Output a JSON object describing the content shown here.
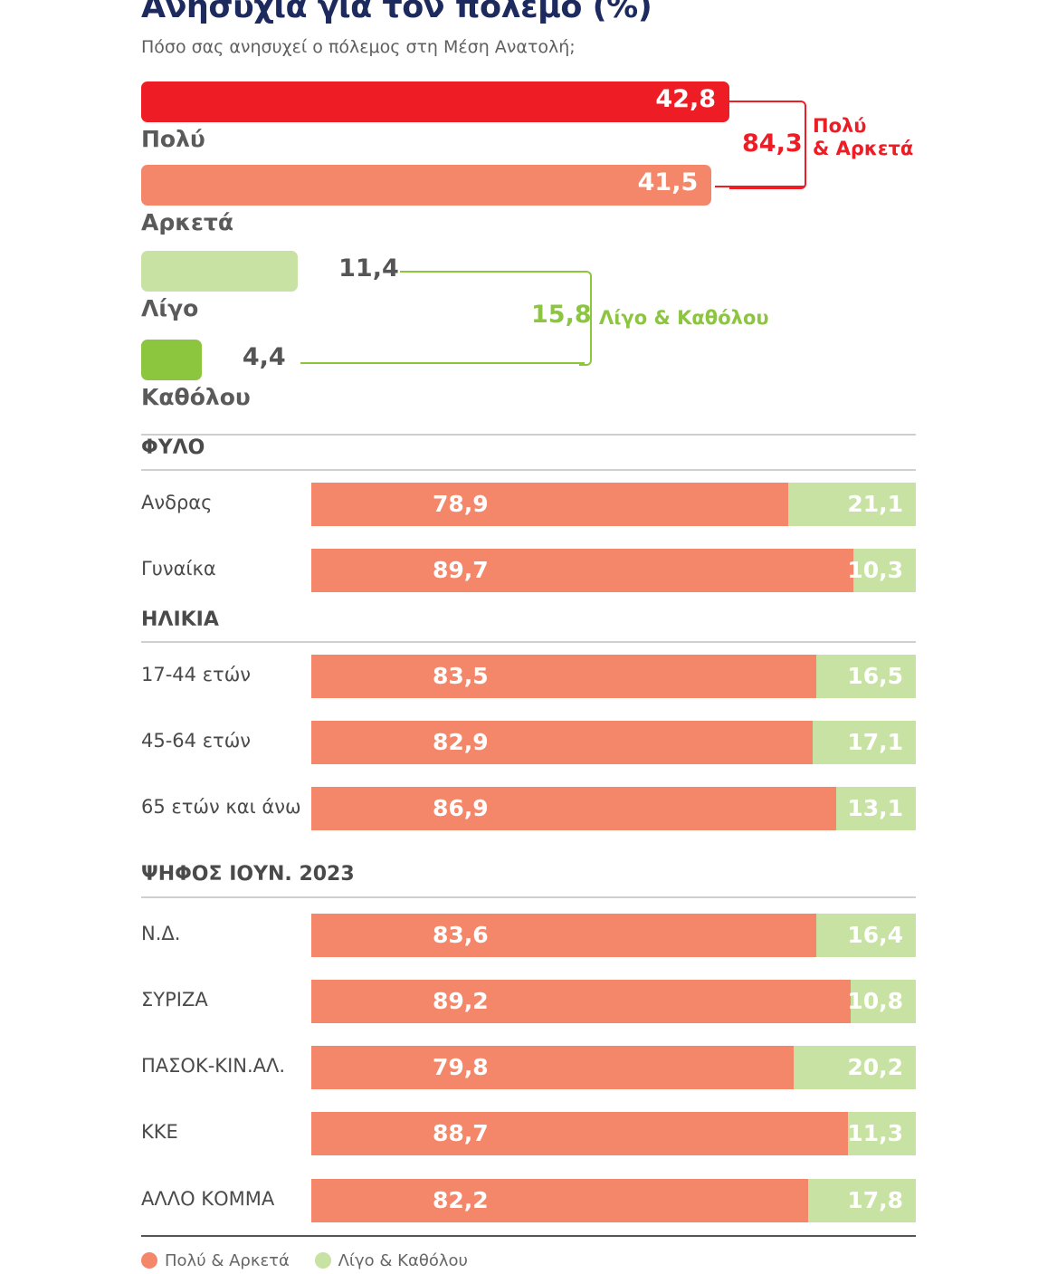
{
  "title": "Ανησυχία για τον πόλεμο (%)",
  "subtitle": "Πόσο σας ανησυχεί ο πόλεμος στη Μέση Ανατολή;",
  "colors": {
    "polu": "#ee1c25",
    "arketa": "#f4876a",
    "ligo": "#c8e2a3",
    "katholou": "#8cc63f",
    "group_red": "#ee1c25",
    "group_green": "#8cc63f"
  },
  "chart_data": [
    {
      "type": "bar",
      "orientation": "horizontal",
      "title": "Ανησυχία για τον πόλεμο (%)",
      "subtitle": "Πόσο σας ανησυχεί ο πόλεμος στη Μέση Ανατολή;",
      "categories": [
        "Πολύ",
        "Αρκετά",
        "Λίγο",
        "Καθόλου"
      ],
      "values": [
        42.8,
        41.5,
        11.4,
        4.4
      ],
      "value_labels": [
        "42,8",
        "41,5",
        "11,4",
        "4,4"
      ],
      "groups": [
        {
          "name": "Πολύ & Αρκετά",
          "members": [
            "Πολύ",
            "Αρκετά"
          ],
          "value": 84.3,
          "value_label": "84,3"
        },
        {
          "name": "Λίγο & Καθόλου",
          "members": [
            "Λίγο",
            "Καθόλου"
          ],
          "value": 15.8,
          "value_label": "15,8"
        }
      ],
      "grid": false
    },
    {
      "type": "bar",
      "orientation": "horizontal",
      "stacked": true,
      "sections": [
        {
          "title": "ΦΥΛΟ",
          "categories": [
            "Ανδρας",
            "Γυναίκα"
          ],
          "series": [
            {
              "name": "Πολύ & Αρκετά",
              "values": [
                78.9,
                89.7
              ],
              "labels": [
                "78,9",
                "89,7"
              ]
            },
            {
              "name": "Λίγο & Καθόλου",
              "values": [
                21.1,
                10.3
              ],
              "labels": [
                "21,1",
                "10,3"
              ]
            }
          ]
        },
        {
          "title": "ΗΛΙΚΙΑ",
          "categories": [
            "17-44 ετών",
            "45-64 ετών",
            "65 ετών και άνω"
          ],
          "series": [
            {
              "name": "Πολύ & Αρκετά",
              "values": [
                83.5,
                82.9,
                86.9
              ],
              "labels": [
                "83,5",
                "82,9",
                "86,9"
              ]
            },
            {
              "name": "Λίγο & Καθόλου",
              "values": [
                16.5,
                17.1,
                13.1
              ],
              "labels": [
                "16,5",
                "17,1",
                "13,1"
              ]
            }
          ]
        },
        {
          "title": "ΨΗΦΟΣ ΙΟΥΝ. 2023",
          "categories": [
            "Ν.Δ.",
            "ΣΥΡΙΖΑ",
            "ΠΑΣΟΚ-ΚΙΝ.ΑΛ.",
            "ΚΚΕ",
            "ΑΛΛΟ ΚΟΜΜΑ"
          ],
          "series": [
            {
              "name": "Πολύ & Αρκετά",
              "values": [
                83.6,
                89.2,
                79.8,
                88.7,
                82.2
              ],
              "labels": [
                "83,6",
                "89,2",
                "79,8",
                "88,7",
                "82,2"
              ]
            },
            {
              "name": "Λίγο & Καθόλου",
              "values": [
                16.4,
                10.8,
                20.2,
                11.3,
                17.8
              ],
              "labels": [
                "16,4",
                "10,8",
                "20,2",
                "11,3",
                "17,8"
              ]
            }
          ]
        }
      ],
      "xlim": [
        0,
        100
      ],
      "legend": {
        "position": "bottom-left",
        "entries": [
          {
            "name": "Πολύ & Αρκετά",
            "color": "#f4876a"
          },
          {
            "name": "Λίγο & Καθόλου",
            "color": "#c8e2a3"
          }
        ]
      },
      "grid": false
    }
  ]
}
